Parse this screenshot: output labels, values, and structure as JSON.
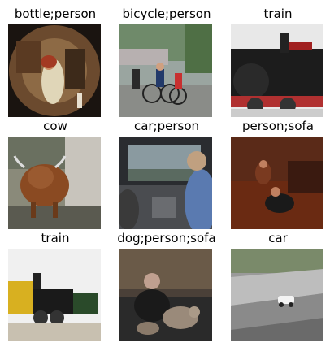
{
  "grid": {
    "cells": [
      {
        "label": "bottle;person"
      },
      {
        "label": "bicycle;person"
      },
      {
        "label": "train"
      },
      {
        "label": "cow"
      },
      {
        "label": "car;person"
      },
      {
        "label": "person;sofa"
      },
      {
        "label": "train"
      },
      {
        "label": "dog;person;sofa"
      },
      {
        "label": "car"
      }
    ]
  }
}
